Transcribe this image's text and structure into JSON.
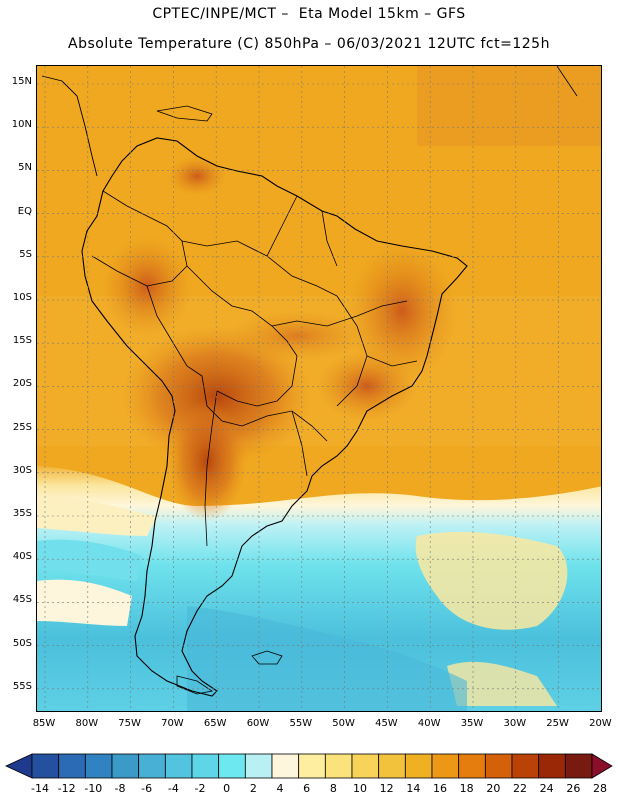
{
  "header": {
    "line1": "CPTEC/INPE/MCT –  Eta Model 15km – GFS",
    "line2": "Absolute Temperature (C) 850hPa – 06/03/2021 12UTC fct=125h"
  },
  "map": {
    "lat_labels": [
      "15N",
      "10N",
      "5N",
      "EQ",
      "5S",
      "10S",
      "15S",
      "20S",
      "25S",
      "30S",
      "35S",
      "40S",
      "45S",
      "50S",
      "55S"
    ],
    "lon_labels": [
      "85W",
      "80W",
      "75W",
      "70W",
      "65W",
      "60W",
      "55W",
      "50W",
      "45W",
      "40W",
      "35W",
      "30W",
      "25W",
      "20W"
    ]
  },
  "legend": {
    "labels": [
      "-14",
      "-12",
      "-10",
      "-8",
      "-6",
      "-4",
      "-2",
      "0",
      "2",
      "4",
      "6",
      "8",
      "10",
      "12",
      "14",
      "16",
      "18",
      "20",
      "22",
      "24",
      "26",
      "28"
    ],
    "colors": [
      "#1f3a8c",
      "#24519f",
      "#2b6ab4",
      "#3182c0",
      "#3b9ac8",
      "#48b0d4",
      "#52c4df",
      "#5ed6e8",
      "#6ee8f0",
      "#b8f0f4",
      "#fdf6dc",
      "#fdeea0",
      "#fbe27a",
      "#f7d35a",
      "#f3c23c",
      "#f0b024",
      "#ec9816",
      "#e57d0e",
      "#d4600a",
      "#bb4207",
      "#9a2706",
      "#781a10",
      "#8b0e2a"
    ]
  },
  "colors": {
    "land_warm": "#f0a820",
    "land_hot": "#d2691a",
    "ocean_cool": "#4cc2dd",
    "coast": "#000000"
  }
}
